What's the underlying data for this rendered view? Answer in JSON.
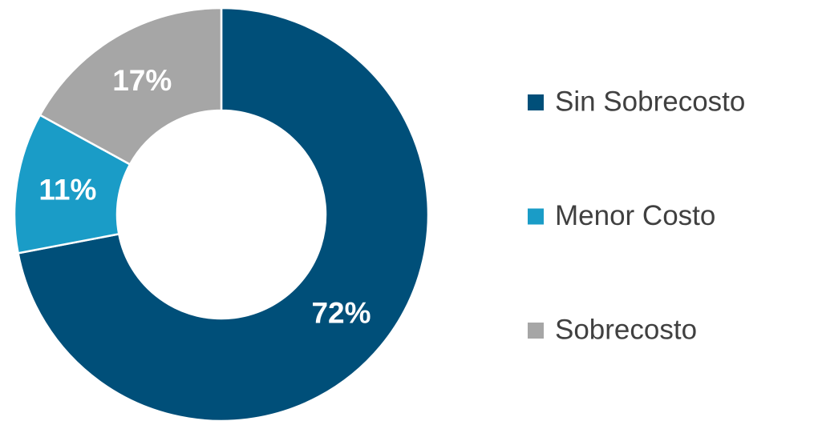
{
  "chart_data": {
    "type": "donut",
    "categories": [
      "Sin Sobrecosto",
      "Menor Costo",
      "Sobrecosto"
    ],
    "values": [
      72,
      11,
      17
    ],
    "value_labels": [
      "72%",
      "11%",
      "17%"
    ],
    "colors": [
      "#004f79",
      "#1a9cc7",
      "#a6a6a6"
    ],
    "legend": "right"
  }
}
